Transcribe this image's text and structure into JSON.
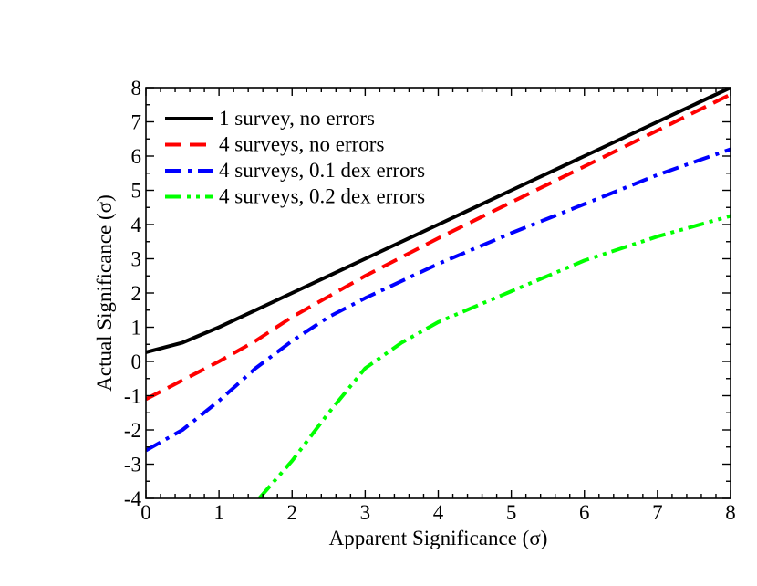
{
  "chart_data": {
    "type": "line",
    "title": "",
    "xlabel": "Apparent Significance (σ)",
    "ylabel": "Actual Significance (σ)",
    "xlim": [
      0,
      8
    ],
    "ylim": [
      -4,
      8
    ],
    "x_ticks": [
      "0",
      "1",
      "2",
      "3",
      "4",
      "5",
      "6",
      "7",
      "8"
    ],
    "y_ticks": [
      "-4",
      "-3",
      "-2",
      "-1",
      "0",
      "1",
      "2",
      "3",
      "4",
      "5",
      "6",
      "7",
      "8"
    ],
    "grid": false,
    "legend_position": "top-left",
    "series": [
      {
        "name": "1 survey, no errors",
        "color": "#000000",
        "style": "solid",
        "points": [
          [
            0,
            0.27
          ],
          [
            0.5,
            0.55
          ],
          [
            1,
            1.0
          ],
          [
            1.5,
            1.5
          ],
          [
            2,
            2.0
          ],
          [
            3,
            3.0
          ],
          [
            4,
            4.0
          ],
          [
            5,
            5.0
          ],
          [
            6,
            6.0
          ],
          [
            7,
            7.0
          ],
          [
            8,
            8.0
          ]
        ]
      },
      {
        "name": "4 surveys, no errors",
        "color": "#ff0000",
        "style": "dashed",
        "points": [
          [
            0,
            -1.1
          ],
          [
            0.5,
            -0.55
          ],
          [
            1,
            0.0
          ],
          [
            1.5,
            0.6
          ],
          [
            2,
            1.3
          ],
          [
            3,
            2.5
          ],
          [
            4,
            3.6
          ],
          [
            5,
            4.65
          ],
          [
            6,
            5.7
          ],
          [
            7,
            6.75
          ],
          [
            8,
            7.8
          ]
        ]
      },
      {
        "name": "4 surveys, 0.1 dex errors",
        "color": "#0000ff",
        "style": "dashdot",
        "points": [
          [
            0,
            -2.6
          ],
          [
            0.5,
            -2.0
          ],
          [
            1,
            -1.15
          ],
          [
            1.5,
            -0.2
          ],
          [
            2,
            0.6
          ],
          [
            2.5,
            1.3
          ],
          [
            3,
            1.85
          ],
          [
            4,
            2.85
          ],
          [
            5,
            3.75
          ],
          [
            6,
            4.6
          ],
          [
            7,
            5.45
          ],
          [
            8,
            6.2
          ]
        ]
      },
      {
        "name": "4 surveys, 0.2 dex errors",
        "color": "#00ff00",
        "style": "dashdotdot",
        "points": [
          [
            1.55,
            -4.0
          ],
          [
            2,
            -2.9
          ],
          [
            2.5,
            -1.5
          ],
          [
            3,
            -0.2
          ],
          [
            3.5,
            0.55
          ],
          [
            4,
            1.15
          ],
          [
            5,
            2.05
          ],
          [
            6,
            2.95
          ],
          [
            7,
            3.65
          ],
          [
            8,
            4.25
          ]
        ]
      }
    ]
  }
}
